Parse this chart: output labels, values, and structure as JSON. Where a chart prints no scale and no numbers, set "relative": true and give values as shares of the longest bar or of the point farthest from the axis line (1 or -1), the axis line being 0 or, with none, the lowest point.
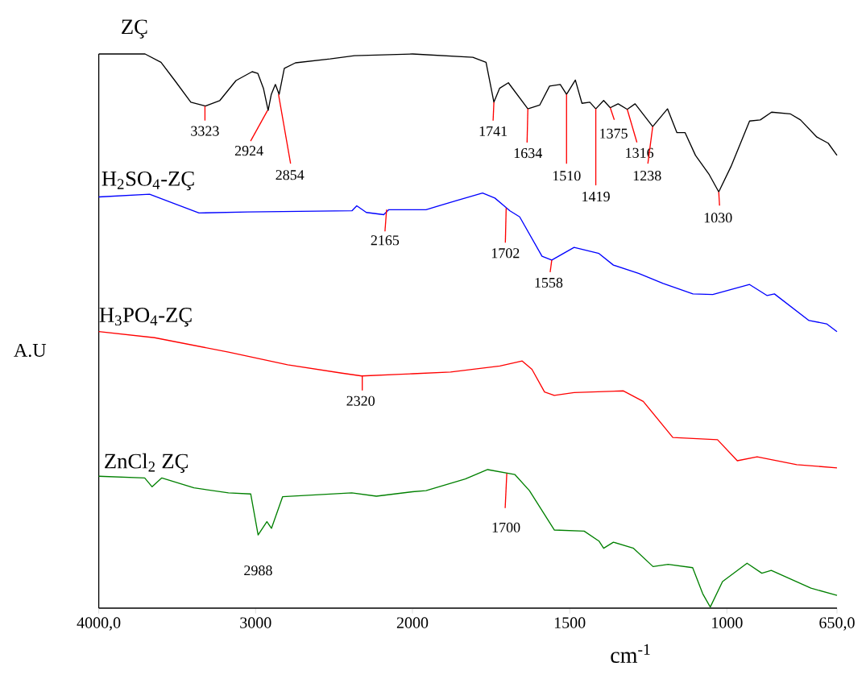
{
  "chart_data": [
    {
      "type": "line",
      "relative": true,
      "ylabel": "A.U",
      "xlim": [
        4000,
        2000
      ],
      "xticks": [
        {
          "value": 4000,
          "label": "4000,0"
        },
        3000
      ],
      "series": [
        {
          "name": "ZÇ",
          "color": "#000000",
          "x": [
            4000,
            3705,
            3603,
            3515,
            3413,
            3320,
            3228,
            3125,
            3022,
            2986,
            2950,
            2920,
            2900,
            2874,
            2850,
            2817,
            2746,
            2525,
            2370,
            2000
          ],
          "values": [
            1.0,
            1.0,
            0.985,
            0.952,
            0.913,
            0.906,
            0.916,
            0.952,
            0.968,
            0.965,
            0.938,
            0.898,
            0.927,
            0.945,
            0.927,
            0.974,
            0.984,
            0.991,
            0.997,
            1.0
          ]
        },
        {
          "name": "H$_{2}$SO$_{4}$-ZÇ",
          "color": "#0000ff",
          "x": [
            4000,
            3676,
            3361,
            3048,
            2386,
            2355,
            2294,
            2183,
            2151,
            2000
          ],
          "values": [
            0.742,
            0.747,
            0.713,
            0.715,
            0.717,
            0.726,
            0.714,
            0.71,
            0.719,
            0.719
          ]
        },
        {
          "name": "H$_{3}$PO$_{4}$-ZÇ",
          "color": "#ff0000",
          "x": [
            4000,
            3644,
            3173,
            2796,
            2450,
            2324,
            2073,
            2000
          ],
          "values": [
            0.499,
            0.488,
            0.462,
            0.439,
            0.424,
            0.419,
            0.422,
            0.423
          ]
        },
        {
          "name": "ZnCl$_{2}$ ZÇ",
          "color": "#008000",
          "x": [
            4000,
            3707,
            3660,
            3598,
            3393,
            3173,
            3031,
            2984,
            2928,
            2899,
            2828,
            2387,
            2230,
            2000
          ],
          "values": [
            0.238,
            0.235,
            0.219,
            0.235,
            0.217,
            0.208,
            0.206,
            0.132,
            0.156,
            0.144,
            0.201,
            0.208,
            0.202,
            0.21
          ]
        }
      ],
      "annotations": [
        {
          "text": "3323",
          "x": 3323,
          "y": 0.906
        },
        {
          "text": "2924",
          "x": 2924,
          "y": 0.898
        },
        {
          "text": "2854",
          "x": 2854,
          "y": 0.927
        },
        {
          "text": "2165",
          "x": 2165,
          "y": 0.719
        },
        {
          "text": "2320",
          "x": 2320,
          "y": 0.419
        },
        {
          "text": "2988",
          "x": 2984,
          "y": 0.132
        }
      ]
    },
    {
      "type": "line",
      "relative": true,
      "xlabel": "cm$^{-1}$",
      "xlim": [
        2000,
        650
      ],
      "xticks": [
        2000,
        1500,
        1000,
        {
          "value": 650,
          "label": "650,0"
        }
      ],
      "series": [
        {
          "color": "#000000",
          "x": [
            2000,
            1808,
            1766,
            1741,
            1723,
            1695,
            1633,
            1595,
            1564,
            1530,
            1510,
            1482,
            1461,
            1436,
            1417,
            1392,
            1371,
            1346,
            1317,
            1292,
            1236,
            1189,
            1159,
            1133,
            1100,
            1056,
            1026,
            987,
            928,
            894,
            858,
            799,
            766,
            714,
            678,
            650
          ],
          "values": [
            1.0,
            0.994,
            0.985,
            0.913,
            0.938,
            0.948,
            0.901,
            0.908,
            0.942,
            0.945,
            0.927,
            0.953,
            0.911,
            0.913,
            0.901,
            0.916,
            0.903,
            0.91,
            0.9,
            0.91,
            0.869,
            0.901,
            0.858,
            0.858,
            0.817,
            0.782,
            0.751,
            0.797,
            0.879,
            0.881,
            0.895,
            0.892,
            0.881,
            0.85,
            0.839,
            0.817
          ]
        },
        {
          "color": "#0000ff",
          "x": [
            2000,
            1957,
            1863,
            1777,
            1738,
            1690,
            1659,
            1588,
            1557,
            1486,
            1407,
            1361,
            1281,
            1203,
            1108,
            1045,
            928,
            872,
            849,
            739,
            683,
            650
          ],
          "values": [
            0.719,
            0.719,
            0.735,
            0.749,
            0.74,
            0.717,
            0.706,
            0.635,
            0.628,
            0.651,
            0.64,
            0.619,
            0.604,
            0.586,
            0.567,
            0.566,
            0.584,
            0.564,
            0.567,
            0.519,
            0.513,
            0.499
          ]
        },
        {
          "color": "#ff0000",
          "x": [
            2000,
            1879,
            1722,
            1651,
            1620,
            1580,
            1549,
            1486,
            1329,
            1266,
            1172,
            1030,
            967,
            904,
            778,
            650
          ],
          "values": [
            0.423,
            0.426,
            0.437,
            0.446,
            0.431,
            0.39,
            0.384,
            0.389,
            0.392,
            0.373,
            0.308,
            0.304,
            0.266,
            0.273,
            0.259,
            0.253
          ]
        },
        {
          "color": "#008000",
          "x": [
            2000,
            1957,
            1832,
            1761,
            1674,
            1628,
            1549,
            1454,
            1407,
            1392,
            1361,
            1297,
            1235,
            1187,
            1109,
            1077,
            1053,
            1014,
            936,
            889,
            859,
            733,
            650
          ],
          "values": [
            0.21,
            0.212,
            0.233,
            0.25,
            0.241,
            0.212,
            0.141,
            0.139,
            0.121,
            0.108,
            0.119,
            0.108,
            0.075,
            0.079,
            0.073,
            0.026,
            0.002,
            0.048,
            0.081,
            0.063,
            0.068,
            0.036,
            0.023
          ]
        }
      ],
      "annotations": [
        {
          "text": "1741",
          "x": 1741,
          "y": 0.913
        },
        {
          "text": "1634",
          "x": 1633,
          "y": 0.901
        },
        {
          "text": "1510",
          "x": 1510,
          "y": 0.927
        },
        {
          "text": "1419",
          "x": 1417,
          "y": 0.901
        },
        {
          "text": "1375",
          "x": 1371,
          "y": 0.903
        },
        {
          "text": "1316",
          "x": 1317,
          "y": 0.9
        },
        {
          "text": "1238",
          "x": 1236,
          "y": 0.869
        },
        {
          "text": "1030",
          "x": 1026,
          "y": 0.751
        },
        {
          "text": "1702",
          "x": 1702,
          "y": 0.722
        },
        {
          "text": "1558",
          "x": 1557,
          "y": 0.628
        },
        {
          "text": "1700",
          "x": 1700,
          "y": 0.243
        }
      ]
    }
  ]
}
